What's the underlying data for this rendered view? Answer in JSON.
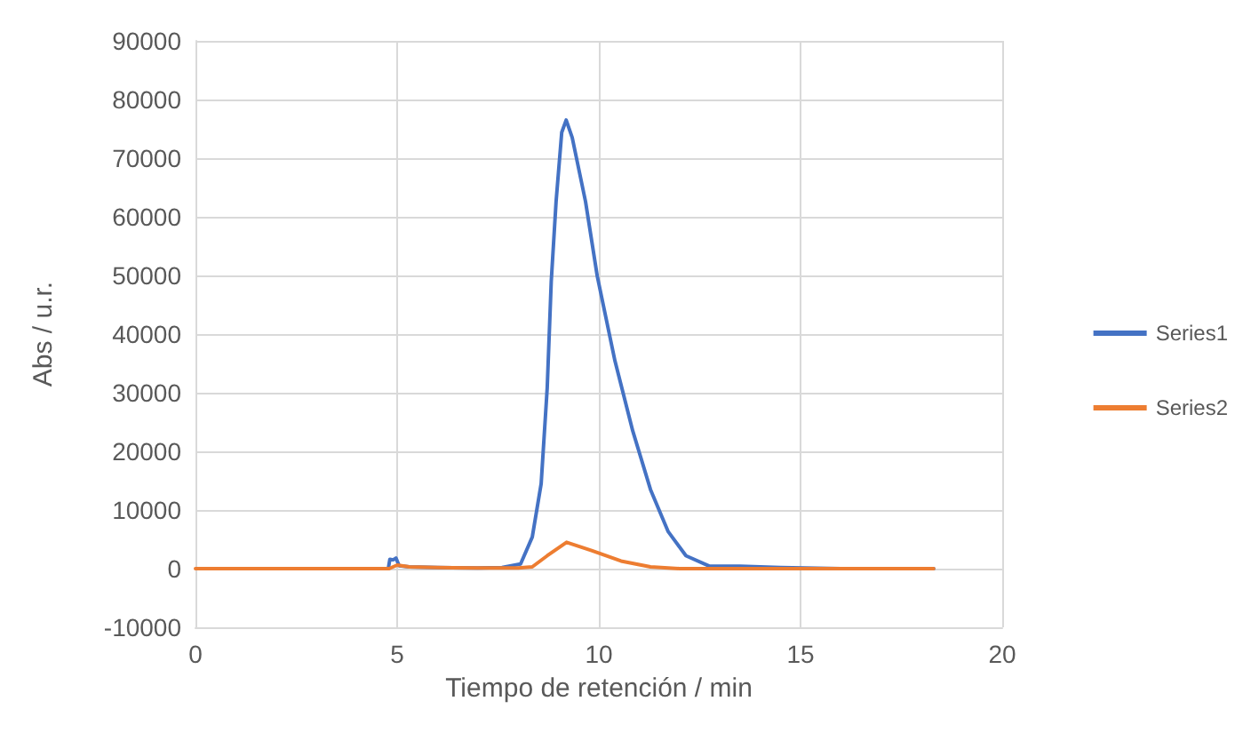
{
  "chart_data": {
    "type": "line",
    "xlabel": "Tiempo de retención / min",
    "ylabel": "Abs / u.r.",
    "xlim": [
      0,
      20
    ],
    "xticks": [
      0,
      5,
      10,
      15,
      20
    ],
    "ylim": [
      -10000,
      90000
    ],
    "yticks": [
      -10000,
      0,
      10000,
      20000,
      30000,
      40000,
      50000,
      60000,
      70000,
      80000,
      90000
    ],
    "grid": true,
    "legend": "right",
    "marker": "none",
    "line_style": "solid",
    "series": [
      {
        "name": "Series1",
        "color": "#4472c4",
        "x": [
          4.78,
          4.82,
          4.9,
          4.97,
          5.05,
          5.3,
          6,
          7,
          7.6,
          8.06,
          8.35,
          8.57,
          8.72,
          8.82,
          8.94,
          9.08,
          9.19,
          9.34,
          9.67,
          9.96,
          10.4,
          10.84,
          11.28,
          11.72,
          12.16,
          12.75,
          13.5,
          14.5,
          16,
          18.3
        ],
        "values": [
          0,
          1600,
          1500,
          1800,
          500,
          300,
          200,
          100,
          200,
          800,
          5400,
          14500,
          30800,
          49000,
          62600,
          74400,
          76500,
          73500,
          62600,
          49900,
          35400,
          23500,
          13500,
          6300,
          2200,
          400,
          400,
          200,
          0,
          0
        ]
      },
      {
        "name": "Series2",
        "color": "#ed7d31",
        "x": [
          0,
          2,
          4,
          4.8,
          5.0,
          5.3,
          6,
          7,
          8,
          8.35,
          8.72,
          9.2,
          9.82,
          10.55,
          11.28,
          12,
          14,
          16,
          18.3
        ],
        "values": [
          0,
          0,
          0,
          0,
          600,
          300,
          200,
          100,
          100,
          300,
          2200,
          4500,
          3100,
          1300,
          300,
          0,
          0,
          0,
          0
        ]
      }
    ]
  }
}
